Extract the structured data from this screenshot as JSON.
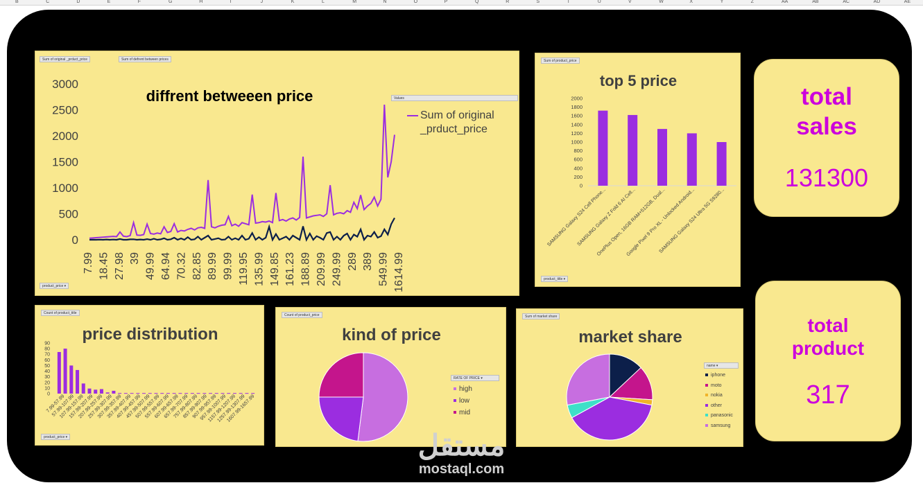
{
  "column_headers": [
    "B",
    "C",
    "D",
    "E",
    "F",
    "G",
    "H",
    "I",
    "J",
    "K",
    "L",
    "M",
    "N",
    "O",
    "P",
    "Q",
    "R",
    "S",
    "T",
    "U",
    "V",
    "W",
    "X",
    "Y",
    "Z",
    "AA",
    "AB",
    "AC",
    "AD",
    "AE"
  ],
  "line_panel": {
    "field_buttons": [
      "Sum of original _prduct_price",
      "Sum of defrent between prices"
    ],
    "axis_button": "product_price",
    "legend_header": "Values",
    "title": "diffrent betweeen price",
    "legend_series": "Sum of original _prduct_price"
  },
  "top5_panel": {
    "field_button": "Sum of product_price",
    "axis_button": "product_title",
    "title": "top 5 price"
  },
  "dist_panel": {
    "field_button": "Count of product_title",
    "axis_button": "product_price",
    "title": "price distribution"
  },
  "kind_panel": {
    "field_button": "Count of product_price",
    "legend_header": "RATE OF PRICE",
    "title": "kind of price"
  },
  "share_panel": {
    "field_button": "Sum of market share",
    "legend_header": "name",
    "title": "market share"
  },
  "kpi_sales": {
    "label_line1": "total",
    "label_line2": "sales",
    "value": "131300"
  },
  "kpi_product": {
    "label_line1": "total",
    "label_line2": "product",
    "value": "317"
  },
  "watermark": {
    "arabic": "مستقل",
    "latin": "mostaql.com"
  },
  "colors": {
    "purple": "#9b2de0",
    "navy": "#0c1f4a",
    "panel": "#f9e88f",
    "magenta": "#cc00dd"
  },
  "chart_data": [
    {
      "type": "line",
      "title": "diffrent betweeen price",
      "ylim": [
        0,
        3000
      ],
      "yticks": [
        0,
        500,
        1000,
        1500,
        2000,
        2500,
        3000
      ],
      "x_ticks": [
        "7.99",
        "18.45",
        "27.98",
        "39",
        "49.99",
        "64.94",
        "70.32",
        "82.85",
        "89.99",
        "99.99",
        "119.95",
        "135.99",
        "149.85",
        "161.23",
        "188.89",
        "209.99",
        "249.99",
        "289",
        "389",
        "549.99",
        "1614.99"
      ],
      "legend": "right",
      "series": [
        {
          "name": "Sum of original _prduct_price",
          "color": "#9b2de0",
          "values": [
            30,
            35,
            40,
            45,
            50,
            55,
            60,
            65,
            60,
            150,
            70,
            60,
            80,
            330,
            90,
            85,
            100,
            300,
            120,
            110,
            130,
            115,
            250,
            140,
            160,
            310,
            150,
            180,
            170,
            200,
            220,
            190,
            230,
            240,
            220,
            1150,
            250,
            230,
            260,
            280,
            290,
            450,
            270,
            300,
            260,
            330,
            310,
            290,
            870,
            320,
            330,
            350,
            340,
            360,
            330,
            900,
            370,
            390,
            360,
            400,
            420,
            380,
            430,
            1600,
            420,
            440,
            460,
            470,
            480,
            450,
            500,
            1050,
            480,
            510,
            520,
            500,
            560,
            530,
            720,
            600,
            860,
            580,
            650,
            700,
            820,
            650,
            780,
            2600,
            1200,
            1500,
            2020
          ]
        },
        {
          "name": "Sum of defrent between prices",
          "color": "#0c1f4a",
          "values": [
            0,
            2,
            0,
            3,
            0,
            5,
            0,
            4,
            0,
            15,
            0,
            0,
            8,
            10,
            0,
            5,
            0,
            12,
            0,
            20,
            0,
            8,
            30,
            0,
            10,
            40,
            0,
            25,
            0,
            50,
            0,
            10,
            60,
            0,
            40,
            80,
            0,
            15,
            30,
            0,
            5,
            60,
            0,
            30,
            0,
            80,
            0,
            20,
            130,
            0,
            50,
            0,
            40,
            250,
            0,
            110,
            0,
            30,
            60,
            0,
            80,
            40,
            0,
            260,
            0,
            120,
            0,
            70,
            40,
            0,
            130,
            150,
            0,
            60,
            0,
            80,
            120,
            0,
            100,
            60,
            200,
            0,
            80,
            60,
            150,
            40,
            70,
            200,
            100,
            300,
            420
          ]
        }
      ]
    },
    {
      "type": "bar",
      "title": "top 5 price",
      "ylim": [
        0,
        2000
      ],
      "yticks": [
        0,
        200,
        400,
        600,
        800,
        1000,
        1200,
        1400,
        1600,
        1800,
        2000
      ],
      "categories": [
        "SAMSUNG Galaxy S24 Cell Phone...",
        "SAMSUNG Galaxy Z Fold 6 AI Cell...",
        "OnePlus Open, 16GB RAM+512GB, Dual...",
        "Google Pixel 9 Pro XL - Unlocked Android...",
        "SAMSUNG Galaxy S24 Ultra 5G S9280..."
      ],
      "values": [
        1720,
        1620,
        1300,
        1200,
        1000
      ]
    },
    {
      "type": "bar",
      "title": "price distribution",
      "ylim": [
        0,
        90
      ],
      "yticks": [
        0,
        10,
        20,
        30,
        40,
        50,
        60,
        70,
        80,
        90
      ],
      "categories": [
        "7.99-57.99",
        "57.99-107.99",
        "107.99-157.99",
        "157.99-207.99",
        "207.99-257.99",
        "257.99-307.99",
        "307.99-357.99",
        "357.99-407.99",
        "407.99-457.99",
        "457.99-507.99",
        "507.99-557.99",
        "557.99-607.99",
        "607.99-657.99",
        "657.99-707.99",
        "707.99-757.99",
        "757.99-807.99",
        "807.99-857.99",
        "857.99-907.99",
        "907.99-957.99",
        "957.99-1007.99",
        "1007.99-1057.99",
        "1057.99-1107.99",
        "1107.99-1157.99",
        "1157.99-1207.99",
        "1207.99-1257.99",
        "1257.99-1307.99",
        "1307.99-1357.99",
        "1357.99-1407.99",
        "1407.99-1457.99",
        "1457.99-1507.99",
        "1507.99-1557.99",
        "1557.99-1607.99",
        "1607.99-1657.99"
      ],
      "tick_labels": [
        "7.99-57.99",
        "57.99-107.99",
        "107.99-157.99",
        "157.99-207.99",
        "207.99-257.99",
        "257.99-307.99",
        "307.99-357.99",
        "357.99-407.99",
        "407.99-457.99",
        "457.99-507.99",
        "507.99-557.99",
        "557.99-607.99",
        "607.99-657.99",
        "657.99-707.99",
        "757.99-807.99",
        "857.99-907.99",
        "907.99-957.99",
        "957.99-1007.99",
        "1157.99-1207.99",
        "1257.99-1307.99",
        "1607.99-1657.99"
      ],
      "values": [
        74,
        80,
        50,
        42,
        18,
        9,
        7,
        8,
        2,
        5,
        1,
        1,
        1,
        1,
        1,
        1,
        1,
        1,
        1,
        1,
        1,
        1,
        1,
        1,
        1,
        1,
        1,
        1,
        1,
        1,
        1,
        1,
        1
      ]
    },
    {
      "type": "pie",
      "title": "kind of price",
      "categories": [
        "high",
        "low",
        "mid"
      ],
      "values": [
        52,
        23,
        25
      ],
      "colors": [
        "#c76ee0",
        "#9b2de0",
        "#c4158c"
      ],
      "legend": "right"
    },
    {
      "type": "pie",
      "title": "market share",
      "categories": [
        "iphone",
        "moto",
        "nokia",
        "other",
        "panasonic",
        "samsung"
      ],
      "values": [
        13,
        13,
        2,
        39,
        5,
        28
      ],
      "colors": [
        "#0c1f4a",
        "#c4158c",
        "#f0b429",
        "#9b2de0",
        "#3ee0c8",
        "#c76ee0"
      ],
      "legend": "right"
    }
  ]
}
